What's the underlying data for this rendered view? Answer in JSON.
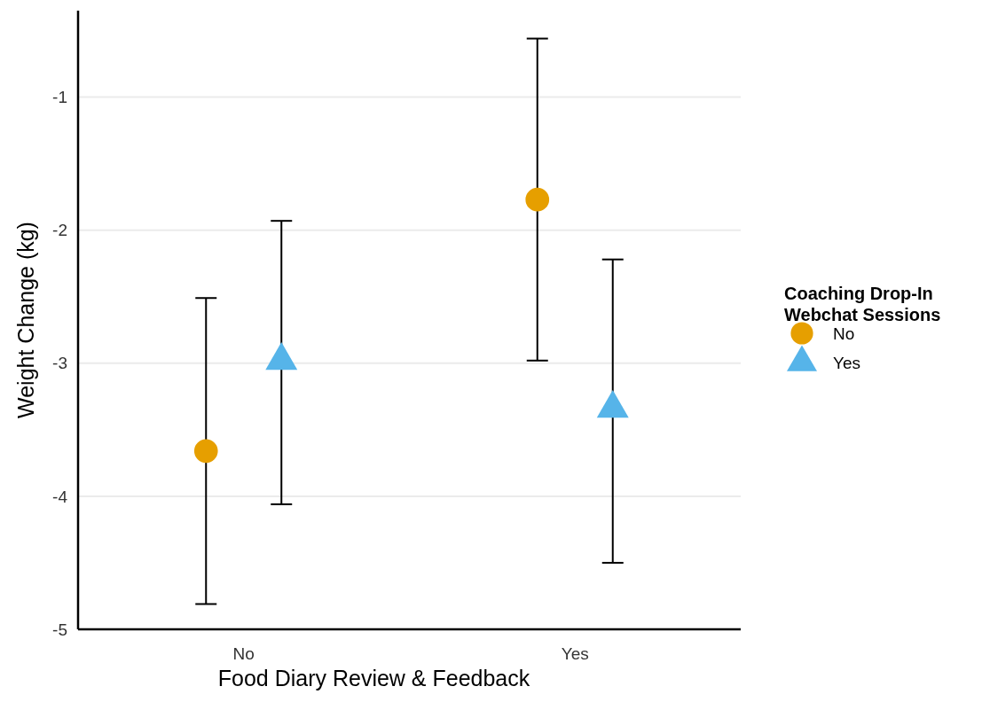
{
  "chart_data": {
    "type": "scatter",
    "xlabel": "Food Diary Review & Feedback",
    "ylabel": "Weight Change (kg)",
    "legend_title": "Coaching Drop-In Webchat Sessions",
    "categories": [
      "No",
      "Yes"
    ],
    "ylim": [
      -5,
      -0.35
    ],
    "yticks": [
      -5,
      -4,
      -3,
      -2,
      -1
    ],
    "grid": "y",
    "legend": "right",
    "series": [
      {
        "name": "No",
        "color": "#e69f00",
        "marker": "circle",
        "values": [
          -3.66,
          -1.77
        ],
        "errors": [
          [
            -4.81,
            -2.51
          ],
          [
            -2.98,
            -0.56
          ]
        ]
      },
      {
        "name": "Yes",
        "color": "#56b4e9",
        "marker": "triangle",
        "values": [
          -2.98,
          -3.34
        ],
        "errors": [
          [
            -4.06,
            -1.93
          ],
          [
            -4.5,
            -2.22
          ]
        ]
      }
    ]
  }
}
